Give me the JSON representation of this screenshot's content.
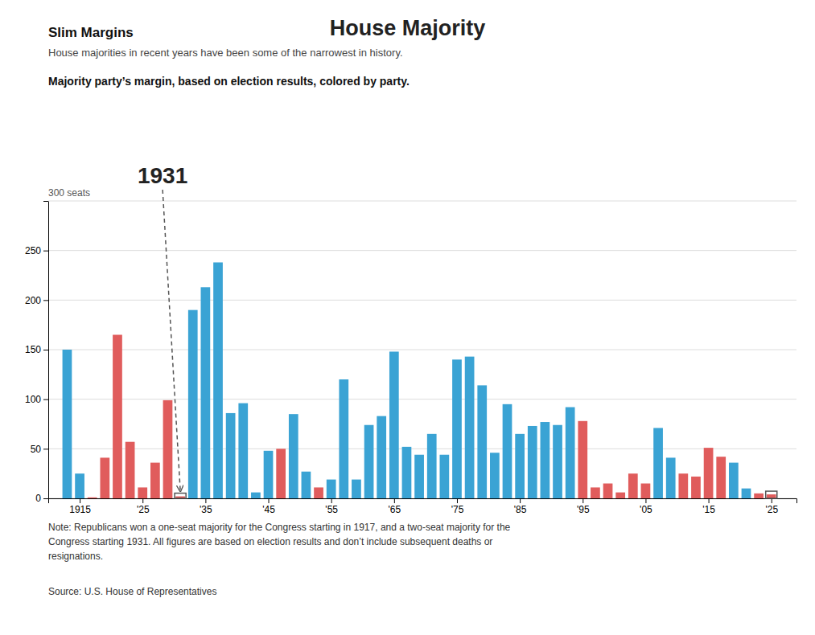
{
  "chart_data": {
    "type": "bar",
    "title": "House Majority",
    "subtitle": [
      "Slim Margins",
      "House majorities in recent years have been some of the narrowest in history."
    ],
    "ylabel": "Majority party’s margin, based on election results, colored by party.",
    "x": [
      1913,
      1915,
      1917,
      1919,
      1921,
      1923,
      1925,
      1927,
      1929,
      1931,
      1933,
      1935,
      1937,
      1939,
      1941,
      1943,
      1945,
      1947,
      1949,
      1951,
      1953,
      1955,
      1957,
      1959,
      1961,
      1963,
      1965,
      1967,
      1969,
      1971,
      1973,
      1975,
      1977,
      1979,
      1981,
      1983,
      1985,
      1987,
      1989,
      1991,
      1993,
      1995,
      1997,
      1999,
      2001,
      2003,
      2005,
      2007,
      2009,
      2011,
      2013,
      2015,
      2017,
      2019,
      2021,
      2023,
      2025
    ],
    "values": [
      150,
      25,
      1,
      41,
      165,
      57,
      11,
      36,
      99,
      2,
      190,
      213,
      238,
      86,
      96,
      6,
      48,
      50,
      85,
      27,
      11,
      19,
      120,
      19,
      74,
      83,
      148,
      52,
      44,
      65,
      44,
      140,
      143,
      114,
      46,
      95,
      65,
      73,
      77,
      74,
      92,
      78,
      11,
      15,
      6,
      25,
      15,
      71,
      41,
      25,
      22,
      51,
      42,
      36,
      10,
      5,
      4
    ],
    "colors": [
      "#3aa3d4",
      "#3aa3d4",
      "#e05c5c",
      "#e05c5c",
      "#e05c5c",
      "#e05c5c",
      "#e05c5c",
      "#e05c5c",
      "#e05c5c",
      "#e05c5c",
      "#3aa3d4",
      "#3aa3d4",
      "#3aa3d4",
      "#3aa3d4",
      "#3aa3d4",
      "#3aa3d4",
      "#3aa3d4",
      "#e05c5c",
      "#3aa3d4",
      "#3aa3d4",
      "#e05c5c",
      "#3aa3d4",
      "#3aa3d4",
      "#3aa3d4",
      "#3aa3d4",
      "#3aa3d4",
      "#3aa3d4",
      "#3aa3d4",
      "#3aa3d4",
      "#3aa3d4",
      "#3aa3d4",
      "#3aa3d4",
      "#3aa3d4",
      "#3aa3d4",
      "#3aa3d4",
      "#3aa3d4",
      "#3aa3d4",
      "#3aa3d4",
      "#3aa3d4",
      "#3aa3d4",
      "#3aa3d4",
      "#e05c5c",
      "#e05c5c",
      "#e05c5c",
      "#e05c5c",
      "#e05c5c",
      "#e05c5c",
      "#3aa3d4",
      "#3aa3d4",
      "#e05c5c",
      "#e05c5c",
      "#e05c5c",
      "#e05c5c",
      "#3aa3d4",
      "#3aa3d4",
      "#e05c5c",
      "#e05c5c"
    ],
    "xlim": [
      1910,
      2029
    ],
    "xticks": [
      1915,
      {
        "value": 1925,
        "label": "'25"
      },
      {
        "value": 1935,
        "label": "'35"
      },
      {
        "value": 1945,
        "label": "'45"
      },
      {
        "value": 1955,
        "label": "'55"
      },
      {
        "value": 1965,
        "label": "'65"
      },
      {
        "value": 1975,
        "label": "'75"
      },
      {
        "value": 1985,
        "label": "'85"
      },
      {
        "value": 1995,
        "label": "'95"
      },
      {
        "value": 2005,
        "label": "'05"
      },
      {
        "value": 2015,
        "label": "'15"
      },
      {
        "value": 2025,
        "label": "'25"
      }
    ],
    "ylim": [
      0,
      300
    ],
    "yticks": [
      0,
      50,
      100,
      150,
      200,
      250
    ],
    "grid": true,
    "annotations": [
      {
        "text": "300 seats",
        "y": 300
      },
      {
        "text": "1931",
        "x": 1931
      },
      {
        "x": 2025
      },
      {
        "text": "Note: Republicans won a one-seat majority for the Congress starting in 1917, and a two-seat majority for the\nCongress starting 1931. All figures are based on election results and don’t include subsequent deaths or\nresignations."
      },
      {
        "text": "Source: U.S. House of Representatives"
      }
    ]
  }
}
